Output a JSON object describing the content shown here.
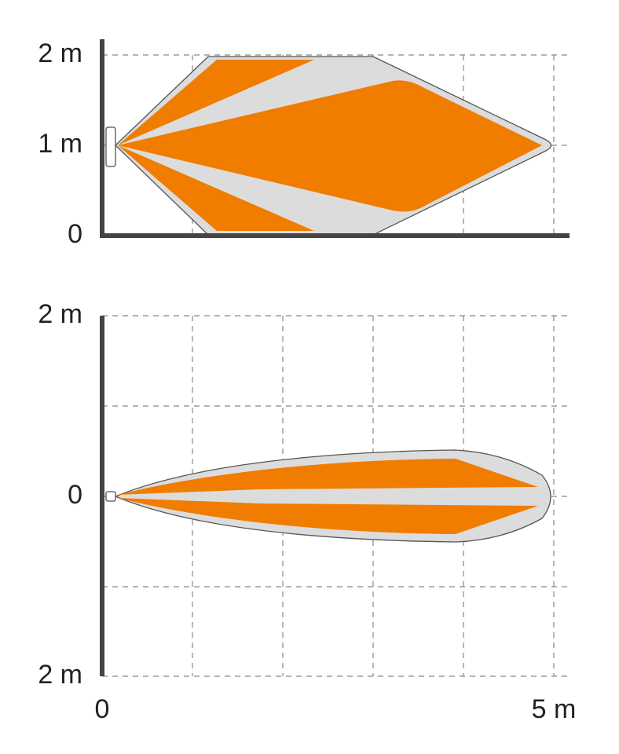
{
  "top_panel": {
    "y_labels": [
      "2 m",
      "1 m",
      "0"
    ]
  },
  "bottom_panel": {
    "y_labels": [
      "2 m",
      "0",
      "2 m"
    ]
  },
  "x_axis": {
    "labels": [
      "0",
      "5 m"
    ]
  }
}
